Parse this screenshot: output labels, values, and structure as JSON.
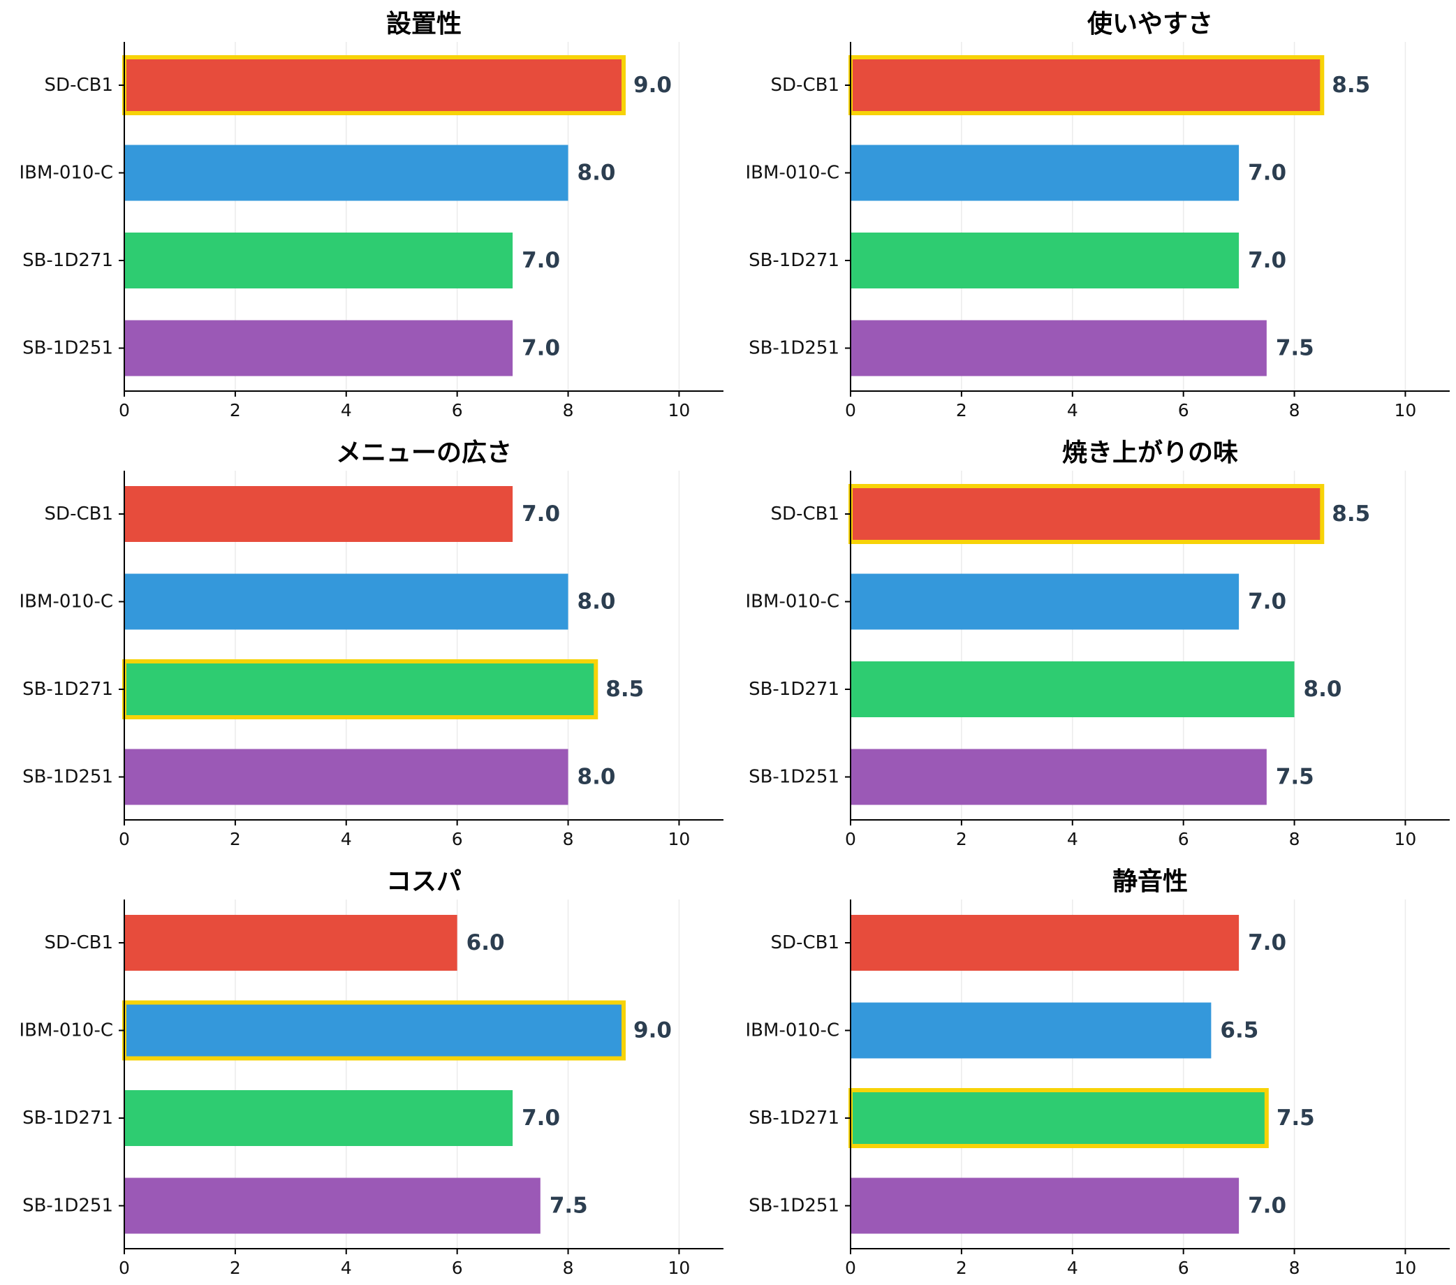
{
  "chart_data": [
    {
      "type": "bar",
      "orientation": "horizontal",
      "title": "設置性",
      "categories": [
        "SD-CB1",
        "IBM-010-C",
        "SB-1D271",
        "SB-1D251"
      ],
      "values": [
        9.0,
        8.0,
        7.0,
        7.0
      ],
      "value_labels": [
        "9.0",
        "8.0",
        "7.0",
        "7.0"
      ],
      "highlighted": "SD-CB1",
      "xlim": [
        0,
        10.8
      ],
      "xticks": [
        0,
        2,
        4,
        6,
        8,
        10
      ],
      "grid": "x"
    },
    {
      "type": "bar",
      "orientation": "horizontal",
      "title": "使いやすさ",
      "categories": [
        "SD-CB1",
        "IBM-010-C",
        "SB-1D271",
        "SB-1D251"
      ],
      "values": [
        8.5,
        7.0,
        7.0,
        7.5
      ],
      "value_labels": [
        "8.5",
        "7.0",
        "7.0",
        "7.5"
      ],
      "highlighted": "SD-CB1",
      "xlim": [
        0,
        10.8
      ],
      "xticks": [
        0,
        2,
        4,
        6,
        8,
        10
      ],
      "grid": "x"
    },
    {
      "type": "bar",
      "orientation": "horizontal",
      "title": "メニューの広さ",
      "categories": [
        "SD-CB1",
        "IBM-010-C",
        "SB-1D271",
        "SB-1D251"
      ],
      "values": [
        7.0,
        8.0,
        8.5,
        8.0
      ],
      "value_labels": [
        "7.0",
        "8.0",
        "8.5",
        "8.0"
      ],
      "highlighted": "SB-1D271",
      "xlim": [
        0,
        10.8
      ],
      "xticks": [
        0,
        2,
        4,
        6,
        8,
        10
      ],
      "grid": "x"
    },
    {
      "type": "bar",
      "orientation": "horizontal",
      "title": "焼き上がりの味",
      "categories": [
        "SD-CB1",
        "IBM-010-C",
        "SB-1D271",
        "SB-1D251"
      ],
      "values": [
        8.5,
        7.0,
        8.0,
        7.5
      ],
      "value_labels": [
        "8.5",
        "7.0",
        "8.0",
        "7.5"
      ],
      "highlighted": "SD-CB1",
      "xlim": [
        0,
        10.8
      ],
      "xticks": [
        0,
        2,
        4,
        6,
        8,
        10
      ],
      "grid": "x"
    },
    {
      "type": "bar",
      "orientation": "horizontal",
      "title": "コスパ",
      "categories": [
        "SD-CB1",
        "IBM-010-C",
        "SB-1D271",
        "SB-1D251"
      ],
      "values": [
        6.0,
        9.0,
        7.0,
        7.5
      ],
      "value_labels": [
        "6.0",
        "9.0",
        "7.0",
        "7.5"
      ],
      "highlighted": "IBM-010-C",
      "xlim": [
        0,
        10.8
      ],
      "xticks": [
        0,
        2,
        4,
        6,
        8,
        10
      ],
      "grid": "x"
    },
    {
      "type": "bar",
      "orientation": "horizontal",
      "title": "静音性",
      "categories": [
        "SD-CB1",
        "IBM-010-C",
        "SB-1D271",
        "SB-1D251"
      ],
      "values": [
        7.0,
        6.5,
        7.5,
        7.0
      ],
      "value_labels": [
        "7.0",
        "6.5",
        "7.5",
        "7.0"
      ],
      "highlighted": "SB-1D271",
      "xlim": [
        0,
        10.8
      ],
      "xticks": [
        0,
        2,
        4,
        6,
        8,
        10
      ],
      "grid": "x"
    }
  ],
  "colors": {
    "SD-CB1": "#e74c3c",
    "IBM-010-C": "#3498db",
    "SB-1D271": "#2ecc71",
    "SB-1D251": "#9b59b6",
    "highlight_border": "#f7d308",
    "value_label": "#2c3e50"
  }
}
